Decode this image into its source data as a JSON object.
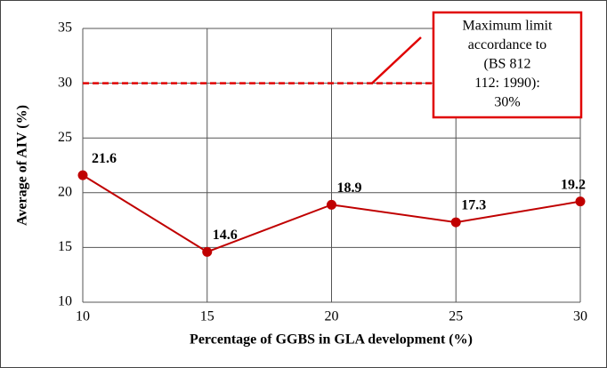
{
  "chart_data": {
    "type": "line",
    "x": [
      10,
      15,
      20,
      25,
      30
    ],
    "series": [
      {
        "name": null,
        "color": "#c00000",
        "values": [
          21.6,
          14.6,
          18.9,
          17.3,
          19.2
        ]
      }
    ],
    "xlim": [
      10,
      30
    ],
    "xticks": [
      10,
      15,
      20,
      25,
      30
    ],
    "ylim": [
      10,
      35
    ],
    "yticks": [
      10,
      15,
      20,
      25,
      30,
      35
    ],
    "xlabel": "Percentage of GGBS in GLA development (%)",
    "ylabel": "Average of AIV (%)",
    "grid": true,
    "reference_line": {
      "value": 30,
      "color": "#e00000"
    },
    "annotation": [
      "Maximum limit",
      "accordance to",
      "(BS 812",
      "112: 1990):",
      "30%"
    ]
  }
}
